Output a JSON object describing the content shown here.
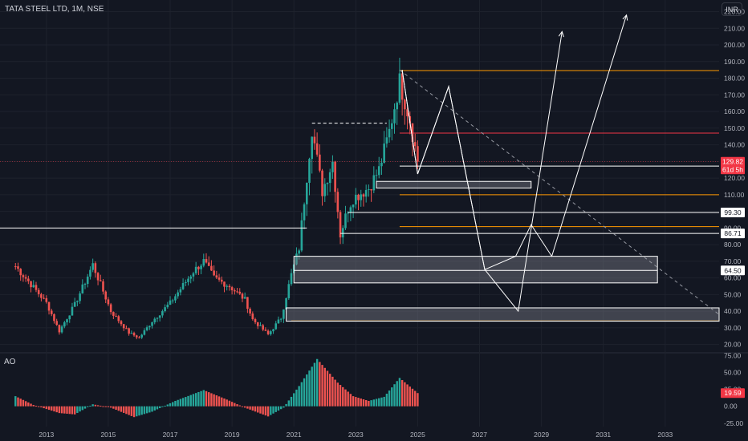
{
  "header": {
    "title": "TATA STEEL LTD, 1M, NSE",
    "currency": "INR"
  },
  "indicator": {
    "name": "AO"
  },
  "colors": {
    "background": "#131722",
    "up": "#26a69a",
    "down": "#ef5350",
    "orange": "#ff9800",
    "red": "#f23645",
    "white": "#ffffff",
    "grid": "#1e222d",
    "text": "#b2b5be"
  },
  "chart_data": [
    {
      "type": "candlestick",
      "title": "TATA STEEL LTD, 1M, NSE",
      "x_axis": {
        "ticks": [
          "2013",
          "2015",
          "2017",
          "2019",
          "2021",
          "2023",
          "2025",
          "2027",
          "2029",
          "2031",
          "2033"
        ]
      },
      "y_axis": {
        "ticks": [
          "220.00",
          "210.00",
          "200.00",
          "190.00",
          "180.00",
          "170.00",
          "160.00",
          "150.00",
          "140.00",
          "130.00",
          "120.00",
          "110.00",
          "100.00",
          "90.00",
          "80.00",
          "70.00",
          "60.00",
          "50.00",
          "40.00",
          "30.00",
          "20.00"
        ],
        "ylim": [
          15,
          227
        ]
      },
      "price_labels": [
        {
          "text": "129.82",
          "value": 129.82,
          "style": "current"
        },
        {
          "text": "61d 5h",
          "value": 125.2,
          "style": "countdown"
        },
        {
          "text": "99.30",
          "value": 99.3,
          "style": "line"
        },
        {
          "text": "86.71",
          "value": 86.71,
          "style": "line"
        },
        {
          "text": "64.50",
          "value": 64.5,
          "style": "line"
        }
      ],
      "anchors": [
        [
          "2012-01",
          67
        ],
        [
          "2012-06",
          58
        ],
        [
          "2013-01",
          45
        ],
        [
          "2013-06",
          28
        ],
        [
          "2013-12",
          44
        ],
        [
          "2014-07",
          68
        ],
        [
          "2015-02",
          40
        ],
        [
          "2015-09",
          27
        ],
        [
          "2016-01",
          24
        ],
        [
          "2016-06",
          34
        ],
        [
          "2017-01",
          45
        ],
        [
          "2017-10",
          64
        ],
        [
          "2018-02",
          70
        ],
        [
          "2018-06",
          60
        ],
        [
          "2018-12",
          55
        ],
        [
          "2019-06",
          47
        ],
        [
          "2019-09",
          35
        ],
        [
          "2020-03",
          26
        ],
        [
          "2020-08",
          36
        ],
        [
          "2020-12",
          62
        ],
        [
          "2021-03",
          78
        ],
        [
          "2021-08",
          150
        ],
        [
          "2021-12",
          112
        ],
        [
          "2022-04",
          130
        ],
        [
          "2022-07",
          86
        ],
        [
          "2022-10",
          102
        ],
        [
          "2022-12",
          108
        ],
        [
          "2023-06",
          114
        ],
        [
          "2023-10",
          125
        ],
        [
          "2024-02",
          148
        ],
        [
          "2024-06",
          178
        ],
        [
          "2024-10",
          155
        ],
        [
          "2025-01",
          129.82
        ]
      ],
      "last_candle": "2025-01",
      "horizontal_levels": [
        {
          "value": 184.6,
          "color": "orange",
          "from": "2024-06",
          "to": "edge"
        },
        {
          "value": 147,
          "color": "red",
          "from": "2024-06",
          "to": "edge"
        },
        {
          "value": 127.2,
          "color": "white",
          "from": "2024-06",
          "to": "edge"
        },
        {
          "value": 110,
          "color": "orange",
          "from": "2024-06",
          "to": "edge"
        },
        {
          "value": 99.3,
          "color": "white",
          "from": "2022-10",
          "to": "edge"
        },
        {
          "value": 90.8,
          "color": "orange",
          "from": "2024-06",
          "to": "edge"
        },
        {
          "value": 86.71,
          "color": "white",
          "from": "2022-07",
          "to": "edge"
        },
        {
          "value": 34.2,
          "color": "orange",
          "from": "2020-12",
          "to": "edge"
        },
        {
          "value": 90,
          "color": "white",
          "from": "2011-07",
          "to": "2021-06"
        },
        {
          "value": 129.82,
          "color": "red-dotted",
          "from": "2011-07",
          "to": "edge"
        }
      ],
      "dashed_high": {
        "value": 153,
        "from": "2021-08",
        "to": "2024-01"
      },
      "zones": [
        {
          "from": "2023-09",
          "to": "2028-09",
          "top": 118,
          "bottom": 114
        },
        {
          "from": "2021-01",
          "to": "2032-10",
          "top": 73,
          "bottom": 57
        },
        {
          "from": "2020-10",
          "to": "edge",
          "top": 42,
          "bottom": 34
        }
      ],
      "mid_line": 64.5,
      "projection_path_1": [
        [
          "2024-07",
          185
        ],
        [
          "2025-01",
          122.5
        ],
        [
          "2026-01",
          175
        ],
        [
          "2027-03",
          65
        ],
        [
          "2028-04",
          40
        ],
        [
          "2029-09",
          208
        ]
      ],
      "projection_path_2": [
        [
          "2024-07",
          185
        ],
        [
          "2025-01",
          122.5
        ],
        [
          "2026-01",
          175
        ],
        [
          "2027-03",
          65
        ],
        [
          "2028-03",
          73
        ],
        [
          "2028-09",
          92
        ],
        [
          "2029-05",
          73
        ],
        [
          "2031-10",
          218
        ]
      ],
      "trend_line": {
        "from": [
          "2024-06",
          185
        ],
        "to": [
          "edge",
          38
        ]
      }
    },
    {
      "type": "histogram",
      "title": "AO",
      "y_axis": {
        "ticks": [
          "75.00",
          "50.00",
          "25.00",
          "0.00",
          "-25.00"
        ],
        "ylim": [
          -30,
          78
        ]
      },
      "current_value": 19.59,
      "current_label": "19.59",
      "anchors": [
        [
          "2012-01",
          15
        ],
        [
          "2012-08",
          2
        ],
        [
          "2013-06",
          -10
        ],
        [
          "2013-12",
          -12
        ],
        [
          "2014-07",
          3
        ],
        [
          "2015-02",
          -2
        ],
        [
          "2015-11",
          -16
        ],
        [
          "2016-06",
          -8
        ],
        [
          "2017-03",
          8
        ],
        [
          "2018-02",
          24
        ],
        [
          "2018-11",
          10
        ],
        [
          "2019-06",
          -2
        ],
        [
          "2020-03",
          -15
        ],
        [
          "2020-09",
          -2
        ],
        [
          "2021-03",
          30
        ],
        [
          "2021-10",
          70
        ],
        [
          "2022-06",
          35
        ],
        [
          "2022-12",
          15
        ],
        [
          "2023-06",
          8
        ],
        [
          "2023-12",
          14
        ],
        [
          "2024-06",
          42
        ],
        [
          "2025-01",
          19.59
        ]
      ]
    }
  ]
}
